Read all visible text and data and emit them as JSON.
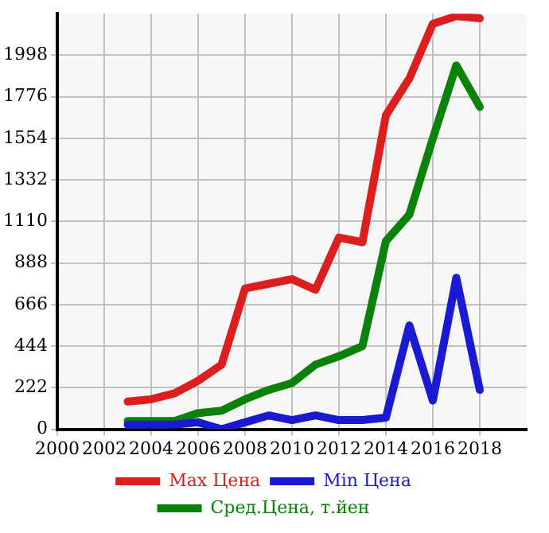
{
  "chart_data": {
    "type": "line",
    "x": [
      2003,
      2004,
      2005,
      2006,
      2007,
      2008,
      2009,
      2010,
      2011,
      2012,
      2013,
      2014,
      2015,
      2016,
      2017,
      2018
    ],
    "series": [
      {
        "name": "Max Цена",
        "color": "#dd1e1e",
        "values": [
          148,
          160,
          192,
          259,
          345,
          752,
          777,
          802,
          745,
          1024,
          999,
          1677,
          1874,
          2166,
          2207,
          2195
        ]
      },
      {
        "name": "Min Цена",
        "color": "#1a1ad2",
        "values": [
          25,
          25,
          25,
          37,
          0,
          37,
          74,
          49,
          74,
          49,
          49,
          62,
          555,
          153,
          809,
          210
        ]
      },
      {
        "name": "Сред.Цена, т.йен",
        "color": "#0a820a",
        "values": [
          44,
          44,
          44,
          86,
          99,
          160,
          210,
          247,
          345,
          390,
          444,
          1005,
          1147,
          1554,
          1944,
          1722
        ]
      }
    ],
    "xlim": [
      2000,
      2020
    ],
    "xticks": [
      2000,
      2002,
      2004,
      2006,
      2008,
      2010,
      2012,
      2014,
      2016,
      2018
    ],
    "ylim": [
      0,
      2220
    ],
    "yticks": [
      0,
      222,
      444,
      666,
      888,
      1110,
      1332,
      1554,
      1776,
      1998
    ],
    "grid": true,
    "legend": "bottom",
    "marker": "none",
    "line_style": "solid"
  }
}
